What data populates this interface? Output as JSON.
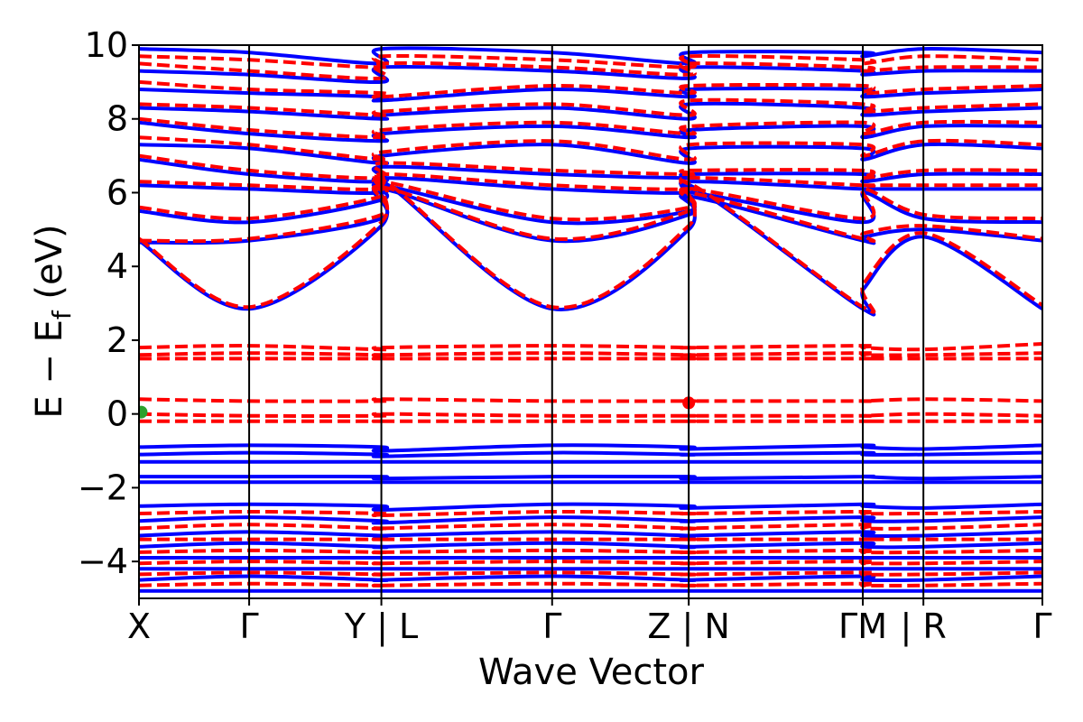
{
  "chart_data": {
    "type": "line",
    "title": "",
    "xlabel": "Wave Vector",
    "ylabel_main": "E − E",
    "ylabel_sub": "f",
    "ylabel_unit": " (eV)",
    "ylim": [
      -5,
      10
    ],
    "yticks": [
      -4,
      -2,
      0,
      2,
      4,
      6,
      8,
      10
    ],
    "ytick_labels": [
      "−4",
      "−2",
      "0",
      "2",
      "4",
      "6",
      "8",
      "10"
    ],
    "grid": false,
    "xlim": [
      0,
      8.2
    ],
    "kpath_ticks": [
      {
        "x": 0.0,
        "label": "X"
      },
      {
        "x": 1.0,
        "label": "Γ"
      },
      {
        "x": 2.2,
        "label": "Y | L"
      },
      {
        "x": 3.75,
        "label": "Γ"
      },
      {
        "x": 4.99,
        "label": "Z | N"
      },
      {
        "x": 6.57,
        "label": "ΓM"
      },
      {
        "x": 7.12,
        "label": "| R"
      },
      {
        "x": 8.2,
        "label": "Γ"
      }
    ],
    "series": [
      {
        "style": "solid",
        "color": "#0000ff",
        "bands": [
          {
            "E": [
              4.7,
              2.85,
              5.1,
              6.3,
              2.85,
              5.0,
              6.2,
              2.85,
              3.4,
              4.8,
              2.85
            ]
          },
          {
            "E": [
              4.65,
              4.7,
              5.3,
              6.1,
              4.7,
              5.4,
              5.9,
              4.7,
              4.8,
              5.0,
              4.7
            ]
          },
          {
            "E": [
              5.5,
              5.2,
              5.8,
              6.2,
              5.2,
              5.5,
              6.0,
              5.2,
              6.0,
              5.3,
              5.2
            ]
          },
          {
            "E": [
              6.2,
              6.1,
              6.0,
              6.4,
              6.1,
              6.0,
              6.3,
              6.1,
              6.1,
              6.1,
              6.1
            ]
          },
          {
            "E": [
              6.9,
              6.5,
              6.3,
              6.7,
              6.5,
              6.4,
              6.5,
              6.5,
              6.3,
              6.5,
              6.5
            ]
          },
          {
            "E": [
              7.3,
              7.2,
              6.8,
              7.0,
              7.3,
              6.8,
              7.2,
              7.2,
              6.9,
              7.3,
              7.2
            ]
          },
          {
            "E": [
              7.9,
              7.6,
              7.4,
              7.6,
              7.8,
              7.5,
              7.7,
              7.8,
              7.5,
              7.8,
              7.8
            ]
          },
          {
            "E": [
              8.3,
              8.2,
              8.0,
              8.1,
              8.3,
              8.0,
              8.4,
              8.3,
              8.1,
              8.2,
              8.3
            ]
          },
          {
            "E": [
              8.8,
              8.7,
              8.6,
              8.5,
              8.8,
              8.6,
              8.8,
              8.8,
              8.6,
              8.7,
              8.8
            ]
          },
          {
            "E": [
              9.3,
              9.2,
              9.0,
              9.4,
              9.3,
              9.1,
              9.4,
              9.3,
              9.2,
              9.3,
              9.3
            ]
          },
          {
            "E": [
              9.9,
              9.8,
              9.5,
              9.9,
              9.8,
              9.5,
              9.8,
              9.8,
              9.7,
              9.9,
              9.8
            ]
          },
          {
            "E": [
              -0.9,
              -0.85,
              -0.9,
              -1.0,
              -0.85,
              -0.9,
              -0.95,
              -0.85,
              -0.9,
              -0.95,
              -0.85
            ]
          },
          {
            "E": [
              -1.1,
              -1.05,
              -1.1,
              -1.15,
              -1.05,
              -1.1,
              -1.1,
              -1.05,
              -1.1,
              -1.1,
              -1.05
            ]
          },
          {
            "E": [
              -1.3,
              -1.3,
              -1.3,
              -1.3,
              -1.3,
              -1.3,
              -1.3,
              -1.3,
              -1.3,
              -1.3,
              -1.3
            ]
          },
          {
            "E": [
              -1.7,
              -1.7,
              -1.7,
              -1.75,
              -1.7,
              -1.7,
              -1.75,
              -1.7,
              -1.7,
              -1.75,
              -1.7
            ]
          },
          {
            "E": [
              -1.85,
              -1.85,
              -1.85,
              -1.85,
              -1.85,
              -1.85,
              -1.85,
              -1.85,
              -1.85,
              -1.85,
              -1.85
            ]
          },
          {
            "E": [
              -2.5,
              -2.45,
              -2.5,
              -2.6,
              -2.45,
              -2.5,
              -2.55,
              -2.45,
              -2.5,
              -2.55,
              -2.45
            ]
          },
          {
            "E": [
              -2.9,
              -2.8,
              -2.9,
              -2.95,
              -2.8,
              -2.9,
              -2.9,
              -2.8,
              -2.9,
              -2.9,
              -2.8
            ]
          },
          {
            "E": [
              -3.3,
              -3.2,
              -3.3,
              -3.3,
              -3.2,
              -3.3,
              -3.3,
              -3.2,
              -3.3,
              -3.3,
              -3.2
            ]
          },
          {
            "E": [
              -3.6,
              -3.5,
              -3.6,
              -3.6,
              -3.5,
              -3.6,
              -3.6,
              -3.5,
              -3.6,
              -3.6,
              -3.5
            ]
          },
          {
            "E": [
              -3.9,
              -3.9,
              -3.9,
              -3.9,
              -3.9,
              -3.9,
              -3.9,
              -3.9,
              -3.9,
              -3.9,
              -3.9
            ]
          },
          {
            "E": [
              -4.2,
              -4.2,
              -4.2,
              -4.2,
              -4.2,
              -4.2,
              -4.2,
              -4.2,
              -4.2,
              -4.2,
              -4.2
            ]
          },
          {
            "E": [
              -4.5,
              -4.4,
              -4.5,
              -4.5,
              -4.4,
              -4.5,
              -4.5,
              -4.4,
              -4.5,
              -4.5,
              -4.4
            ]
          },
          {
            "E": [
              -4.8,
              -4.8,
              -4.8,
              -4.8,
              -4.8,
              -4.8,
              -4.8,
              -4.8,
              -4.8,
              -4.8,
              -4.8
            ]
          }
        ]
      },
      {
        "style": "dashed",
        "color": "#ff0000",
        "bands": [
          {
            "E": [
              4.75,
              2.9,
              5.2,
              6.35,
              2.9,
              5.1,
              6.25,
              2.9,
              3.55,
              4.9,
              2.95
            ]
          },
          {
            "E": [
              4.7,
              4.75,
              5.4,
              6.15,
              4.75,
              5.5,
              6.0,
              4.75,
              4.9,
              5.1,
              4.75
            ]
          },
          {
            "E": [
              5.6,
              5.3,
              5.9,
              6.3,
              5.3,
              5.6,
              6.1,
              5.3,
              6.1,
              5.4,
              5.3
            ]
          },
          {
            "E": [
              6.3,
              6.2,
              6.1,
              6.5,
              6.2,
              6.1,
              6.4,
              6.2,
              6.2,
              6.2,
              6.2
            ]
          },
          {
            "E": [
              7.0,
              6.6,
              6.4,
              6.8,
              6.6,
              6.5,
              6.6,
              6.6,
              6.4,
              6.6,
              6.6
            ]
          },
          {
            "E": [
              7.5,
              7.3,
              6.9,
              7.1,
              7.4,
              6.9,
              7.3,
              7.3,
              7.0,
              7.4,
              7.3
            ]
          },
          {
            "E": [
              8.0,
              7.7,
              7.5,
              7.7,
              7.9,
              7.6,
              7.8,
              7.9,
              7.6,
              7.9,
              7.9
            ]
          },
          {
            "E": [
              8.4,
              8.3,
              8.1,
              8.2,
              8.4,
              8.1,
              8.5,
              8.4,
              8.2,
              8.3,
              8.4
            ]
          },
          {
            "E": [
              9.0,
              8.8,
              8.7,
              8.6,
              8.9,
              8.7,
              8.9,
              8.9,
              8.7,
              8.8,
              8.9
            ]
          },
          {
            "E": [
              9.5,
              9.3,
              9.1,
              9.5,
              9.4,
              9.2,
              9.5,
              9.4,
              9.3,
              9.4,
              9.4
            ]
          },
          {
            "E": [
              9.7,
              9.6,
              9.4,
              9.7,
              9.6,
              9.4,
              9.7,
              9.6,
              9.5,
              9.7,
              9.6
            ]
          },
          {
            "E": [
              1.8,
              1.85,
              1.75,
              1.8,
              1.85,
              1.8,
              1.8,
              1.85,
              1.8,
              1.75,
              1.9
            ]
          },
          {
            "E": [
              1.6,
              1.65,
              1.6,
              1.6,
              1.65,
              1.6,
              1.6,
              1.65,
              1.6,
              1.6,
              1.65
            ]
          },
          {
            "E": [
              1.5,
              1.5,
              1.5,
              1.5,
              1.5,
              1.5,
              1.5,
              1.5,
              1.5,
              1.5,
              1.5
            ]
          },
          {
            "E": [
              0.4,
              0.35,
              0.35,
              0.4,
              0.35,
              0.35,
              0.35,
              0.35,
              0.35,
              0.4,
              0.35
            ]
          },
          {
            "E": [
              0.0,
              -0.05,
              -0.05,
              0.0,
              -0.05,
              -0.05,
              -0.05,
              -0.05,
              -0.05,
              0.0,
              -0.05
            ]
          },
          {
            "E": [
              -0.2,
              -0.2,
              -0.2,
              -0.2,
              -0.2,
              -0.2,
              -0.2,
              -0.2,
              -0.2,
              -0.2,
              -0.2
            ]
          },
          {
            "E": [
              -2.7,
              -2.65,
              -2.7,
              -2.75,
              -2.65,
              -2.7,
              -2.7,
              -2.65,
              -2.7,
              -2.7,
              -2.65
            ]
          },
          {
            "E": [
              -3.1,
              -3.0,
              -3.1,
              -3.1,
              -3.0,
              -3.1,
              -3.1,
              -3.0,
              -3.1,
              -3.1,
              -3.0
            ]
          },
          {
            "E": [
              -3.4,
              -3.4,
              -3.4,
              -3.4,
              -3.4,
              -3.4,
              -3.4,
              -3.4,
              -3.4,
              -3.4,
              -3.4
            ]
          },
          {
            "E": [
              -3.75,
              -3.7,
              -3.75,
              -3.75,
              -3.7,
              -3.75,
              -3.75,
              -3.7,
              -3.75,
              -3.75,
              -3.7
            ]
          },
          {
            "E": [
              -4.05,
              -4.0,
              -4.05,
              -4.05,
              -4.0,
              -4.05,
              -4.05,
              -4.0,
              -4.05,
              -4.05,
              -4.0
            ]
          },
          {
            "E": [
              -4.35,
              -4.3,
              -4.35,
              -4.35,
              -4.3,
              -4.35,
              -4.35,
              -4.3,
              -4.35,
              -4.35,
              -4.3
            ]
          },
          {
            "E": [
              -4.65,
              -4.6,
              -4.65,
              -4.65,
              -4.6,
              -4.65,
              -4.65,
              -4.6,
              -4.65,
              -4.65,
              -4.6
            ]
          }
        ]
      }
    ],
    "band_x": [
      0.0,
      1.0,
      2.2,
      2.21,
      3.75,
      4.99,
      5.0,
      6.57,
      6.58,
      7.13,
      8.2
    ],
    "markers": [
      {
        "x": 0.02,
        "E": 0.05,
        "color": "#2ca02c"
      },
      {
        "x": 4.99,
        "E": 0.3,
        "color": "#ff0000"
      }
    ]
  }
}
